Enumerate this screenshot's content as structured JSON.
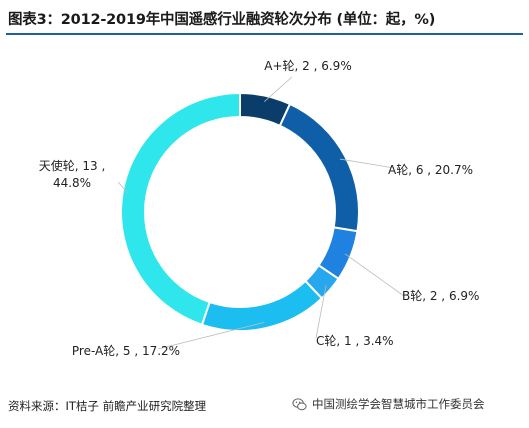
{
  "title": "图表3：2012-2019年中国遥感行业融资轮次分布 (单位：起，%)",
  "source": "资料来源：IT桔子 前瞻产业研究院整理",
  "footer_brand": "中国测绘学会智慧城市工作委员会",
  "icons": {
    "footer": "wechat-icon"
  },
  "chart_data": {
    "type": "pie",
    "donut": true,
    "title": "",
    "categories": [
      "A+轮",
      "A轮",
      "B轮",
      "C轮",
      "Pre-A轮",
      "天使轮"
    ],
    "values": [
      2,
      6,
      2,
      1,
      5,
      13
    ],
    "percents": [
      "6.9%",
      "20.7%",
      "6.9%",
      "3.4%",
      "17.2%",
      "44.8%"
    ],
    "colors": [
      "#0b3d6b",
      "#0e5fa8",
      "#1f82e0",
      "#27a7ee",
      "#1cbdf0",
      "#2ee6ec"
    ],
    "labels": [
      "A+轮, 2 , 6.9%",
      "A轮, 6 , 20.7%",
      "B轮, 2 , 6.9%",
      "C轮, 1 , 3.4%",
      "Pre-A轮, 5 , 17.2%",
      "天使轮, 13 ,\n44.8%"
    ]
  }
}
